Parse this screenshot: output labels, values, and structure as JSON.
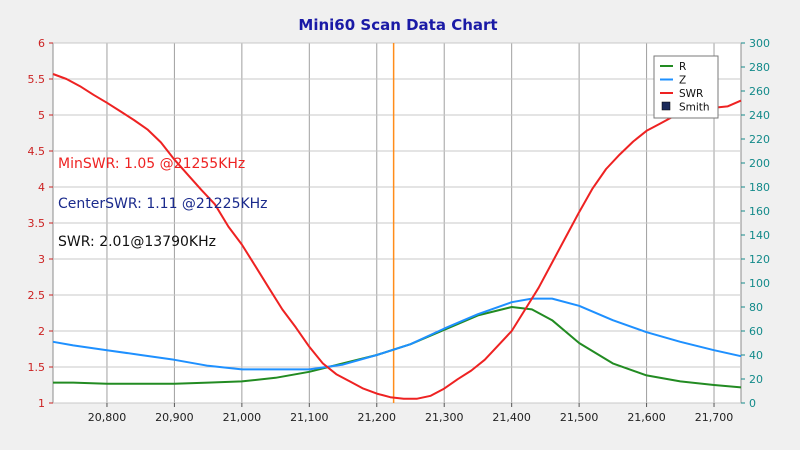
{
  "chart_data": {
    "type": "line",
    "title": "Mini60 Scan Data Chart",
    "x_range": [
      20720,
      21740
    ],
    "x_ticks": [
      "20,800",
      "20,900",
      "21,000",
      "21,100",
      "21,200",
      "21,300",
      "21,400",
      "21,500",
      "21,600",
      "21,700"
    ],
    "x_tick_values": [
      20800,
      20900,
      21000,
      21100,
      21200,
      21300,
      21400,
      21500,
      21600,
      21700
    ],
    "y_left": {
      "range": [
        1,
        6
      ],
      "ticks": [
        "1",
        "1.5",
        "2",
        "2.5",
        "3",
        "3.5",
        "4",
        "4.5",
        "5",
        "5.5",
        "6"
      ],
      "tick_values": [
        1,
        1.5,
        2,
        2.5,
        3,
        3.5,
        4,
        4.5,
        5,
        5.5,
        6
      ]
    },
    "y_right": {
      "range": [
        0,
        300
      ],
      "ticks": [
        "0",
        "20",
        "40",
        "60",
        "80",
        "100",
        "120",
        "140",
        "160",
        "180",
        "200",
        "220",
        "240",
        "260",
        "280",
        "300"
      ],
      "tick_values": [
        0,
        20,
        40,
        60,
        80,
        100,
        120,
        140,
        160,
        180,
        200,
        220,
        240,
        260,
        280,
        300
      ]
    },
    "grid": true,
    "marker_x": 21225,
    "legend_position": "top-right",
    "legend": [
      {
        "label": "R",
        "color": "#228b22",
        "kind": "line"
      },
      {
        "label": "Z",
        "color": "#1e90ff",
        "kind": "line"
      },
      {
        "label": "SWR",
        "color": "#ee2222",
        "kind": "line"
      },
      {
        "label": "Smith",
        "color": "#1a2a5a",
        "kind": "box"
      }
    ],
    "annotations": [
      {
        "text": "MinSWR: 1.05 @21255KHz",
        "color": "#ee2222"
      },
      {
        "text": "CenterSWR: 1.11 @21225KHz",
        "color": "#1a2a8c"
      },
      {
        "text": "SWR: 2.01@13790KHz",
        "color": "#111111"
      }
    ],
    "series": [
      {
        "name": "SWR",
        "axis": "left",
        "color": "#ee2222",
        "x": [
          20720,
          20740,
          20760,
          20780,
          20800,
          20820,
          20840,
          20860,
          20880,
          20900,
          20920,
          20940,
          20960,
          20980,
          21000,
          21020,
          21040,
          21060,
          21080,
          21100,
          21120,
          21140,
          21160,
          21180,
          21200,
          21220,
          21240,
          21260,
          21280,
          21300,
          21320,
          21340,
          21360,
          21380,
          21400,
          21420,
          21440,
          21460,
          21480,
          21500,
          21520,
          21540,
          21560,
          21580,
          21600,
          21620,
          21640,
          21660,
          21680,
          21700,
          21720,
          21740
        ],
        "values": [
          5.57,
          5.5,
          5.4,
          5.28,
          5.17,
          5.05,
          4.93,
          4.8,
          4.62,
          4.38,
          4.17,
          3.96,
          3.76,
          3.45,
          3.2,
          2.9,
          2.6,
          2.3,
          2.05,
          1.78,
          1.55,
          1.4,
          1.3,
          1.2,
          1.13,
          1.08,
          1.06,
          1.06,
          1.1,
          1.2,
          1.33,
          1.45,
          1.6,
          1.8,
          2.0,
          2.3,
          2.6,
          2.95,
          3.3,
          3.65,
          3.98,
          4.25,
          4.45,
          4.63,
          4.78,
          4.88,
          4.98,
          5.05,
          5.08,
          5.1,
          5.12,
          5.2
        ]
      },
      {
        "name": "Z",
        "axis": "right",
        "color": "#1e90ff",
        "x": [
          20720,
          20750,
          20800,
          20850,
          20900,
          20950,
          21000,
          21050,
          21100,
          21150,
          21200,
          21250,
          21300,
          21350,
          21400,
          21430,
          21460,
          21500,
          21550,
          21600,
          21650,
          21700,
          21740
        ],
        "values": [
          51,
          48,
          44,
          40,
          36,
          31,
          28,
          28,
          28,
          32,
          40,
          49,
          62,
          74,
          84,
          87,
          87,
          81,
          69,
          59,
          51,
          44,
          39
        ]
      },
      {
        "name": "R",
        "axis": "right",
        "color": "#228b22",
        "x": [
          20720,
          20750,
          20800,
          20850,
          20900,
          20950,
          21000,
          21050,
          21100,
          21150,
          21200,
          21250,
          21300,
          21350,
          21400,
          21430,
          21460,
          21500,
          21550,
          21600,
          21650,
          21700,
          21740
        ],
        "values": [
          17,
          17,
          16,
          16,
          16,
          17,
          18,
          21,
          26,
          33,
          40,
          49,
          61,
          73,
          80,
          78,
          69,
          50,
          33,
          23,
          18,
          15,
          13
        ]
      }
    ]
  }
}
